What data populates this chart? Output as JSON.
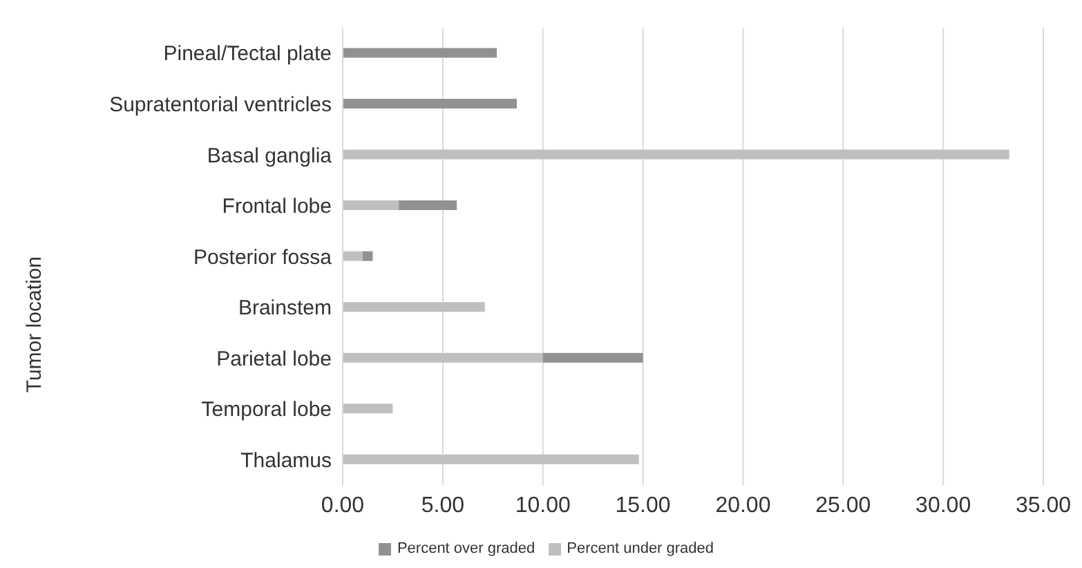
{
  "chart_data": {
    "type": "bar",
    "orientation": "horizontal",
    "stacked": true,
    "ylabel": "Tumor location",
    "categories": [
      "Pineal/Tectal plate",
      "Supratentorial ventricles",
      "Basal ganglia",
      "Frontal lobe",
      "Posterior fossa",
      "Brainstem",
      "Parietal lobe",
      "Temporal lobe",
      "Thalamus"
    ],
    "series": [
      {
        "name": "Percent under graded",
        "color": "#bfbfbf",
        "values": [
          null,
          null,
          33.3,
          2.8,
          1.0,
          7.1,
          10.0,
          2.5,
          14.8
        ]
      },
      {
        "name": "Percent over graded",
        "color": "#919191",
        "values": [
          7.7,
          8.7,
          null,
          2.9,
          0.5,
          null,
          5.0,
          null,
          null
        ]
      }
    ],
    "xlim": [
      0,
      35
    ],
    "xticks": [
      {
        "value": 0,
        "label": "0.00"
      },
      {
        "value": 5,
        "label": "5.00"
      },
      {
        "value": 10,
        "label": "10.00"
      },
      {
        "value": 15,
        "label": "15.00"
      },
      {
        "value": 20,
        "label": "20.00"
      },
      {
        "value": 25,
        "label": "25.00"
      },
      {
        "value": 30,
        "label": "30.00"
      },
      {
        "value": 35,
        "label": "35.00"
      }
    ],
    "grid": "x",
    "legend": "bottom"
  }
}
